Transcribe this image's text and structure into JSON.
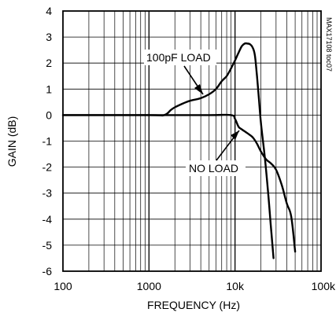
{
  "chart_data": {
    "type": "line",
    "xlabel": "FREQUENCY (Hz)",
    "ylabel": "GAIN (dB)",
    "xscale": "log",
    "xlim": [
      100,
      100000
    ],
    "ylim": [
      -6,
      4
    ],
    "grid": true,
    "x_ticks": [
      {
        "value": 100,
        "label": "100"
      },
      {
        "value": 1000,
        "label": "1000"
      },
      {
        "value": 10000,
        "label": "10k"
      },
      {
        "value": 100000,
        "label": "100k"
      }
    ],
    "y_ticks": [
      {
        "value": 4,
        "label": "4"
      },
      {
        "value": 3,
        "label": "3"
      },
      {
        "value": 2,
        "label": "2"
      },
      {
        "value": 1,
        "label": "1"
      },
      {
        "value": 0,
        "label": "0"
      },
      {
        "value": -1,
        "label": "-1"
      },
      {
        "value": -2,
        "label": "-2"
      },
      {
        "value": -3,
        "label": "-3"
      },
      {
        "value": -4,
        "label": "-4"
      },
      {
        "value": -5,
        "label": "-5"
      },
      {
        "value": -6,
        "label": "-6"
      }
    ],
    "series": [
      {
        "name": "100pF LOAD",
        "points": [
          [
            100,
            0
          ],
          [
            1000,
            0
          ],
          [
            1500,
            0
          ],
          [
            1800,
            0.2
          ],
          [
            2000,
            0.3
          ],
          [
            2500,
            0.45
          ],
          [
            3000,
            0.55
          ],
          [
            4000,
            0.65
          ],
          [
            5000,
            0.8
          ],
          [
            6000,
            1.0
          ],
          [
            7000,
            1.3
          ],
          [
            8000,
            1.5
          ],
          [
            9000,
            1.8
          ],
          [
            10000,
            2.1
          ],
          [
            11000,
            2.4
          ],
          [
            12000,
            2.65
          ],
          [
            13000,
            2.75
          ],
          [
            14000,
            2.75
          ],
          [
            15000,
            2.72
          ],
          [
            16000,
            2.6
          ],
          [
            17000,
            2.3
          ],
          [
            18000,
            1.5
          ],
          [
            19000,
            0.6
          ],
          [
            20000,
            -0.3
          ],
          [
            22000,
            -1.5
          ],
          [
            24000,
            -2.8
          ],
          [
            26000,
            -4.2
          ],
          [
            28000,
            -5.5
          ]
        ]
      },
      {
        "name": "NO LOAD",
        "points": [
          [
            100,
            0
          ],
          [
            1000,
            0
          ],
          [
            5000,
            0
          ],
          [
            9000,
            0
          ],
          [
            10000,
            -0.15
          ],
          [
            11000,
            -0.45
          ],
          [
            12000,
            -0.55
          ],
          [
            14000,
            -0.7
          ],
          [
            16000,
            -0.85
          ],
          [
            18000,
            -1.1
          ],
          [
            20000,
            -1.4
          ],
          [
            23000,
            -1.7
          ],
          [
            26000,
            -1.85
          ],
          [
            30000,
            -2.1
          ],
          [
            35000,
            -2.7
          ],
          [
            40000,
            -3.4
          ],
          [
            45000,
            -3.9
          ],
          [
            50000,
            -5.25
          ]
        ]
      }
    ],
    "annotations": [
      {
        "text": "100pF LOAD",
        "series": "100pF LOAD"
      },
      {
        "text": "NO LOAD",
        "series": "NO LOAD"
      },
      {
        "text": "MAX17108 toc07"
      }
    ]
  }
}
